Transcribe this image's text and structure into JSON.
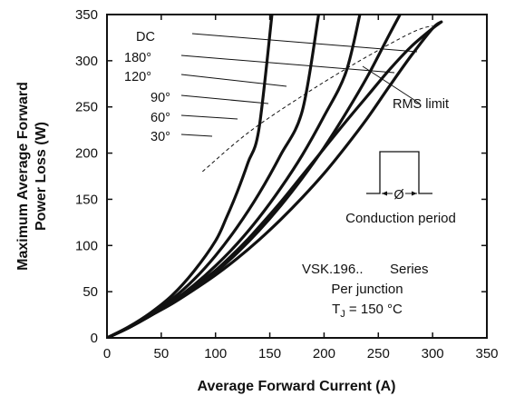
{
  "chart_data": {
    "type": "line",
    "xlabel": "Average Forward Current (A)",
    "ylabel_lines": [
      "Maximum Average Forward",
      "Power Loss (W)"
    ],
    "xlim": [
      0,
      350
    ],
    "ylim": [
      0,
      350
    ],
    "xticks": [
      0,
      50,
      100,
      150,
      200,
      250,
      300,
      350
    ],
    "yticks": [
      0,
      50,
      100,
      150,
      200,
      250,
      300,
      350
    ],
    "grid": false,
    "series": [
      {
        "name": "DC",
        "label": "DC",
        "x": [
          0,
          20,
          40,
          60,
          80,
          100,
          120,
          130,
          140,
          160,
          180,
          200,
          220,
          240,
          260,
          280,
          300,
          308
        ],
        "y": [
          0,
          11,
          24,
          38,
          55,
          73,
          95,
          107,
          120,
          147,
          176,
          205,
          234,
          262,
          290,
          315,
          335,
          342
        ]
      },
      {
        "name": "180°",
        "label": "180°",
        "x": [
          0,
          20,
          40,
          60,
          80,
          100,
          120,
          140,
          160,
          180,
          200,
          220,
          240,
          260,
          280,
          300,
          308
        ],
        "y": [
          0,
          11,
          24,
          37,
          52,
          68,
          86,
          106,
          128,
          152,
          178,
          207,
          238,
          272,
          305,
          335,
          342
        ]
      },
      {
        "name": "120°",
        "label": "120°",
        "x": [
          0,
          20,
          40,
          60,
          80,
          100,
          120,
          140,
          160,
          180,
          200,
          220,
          240,
          260,
          270
        ],
        "y": [
          0,
          11,
          24,
          38,
          53,
          71,
          92,
          116,
          143,
          173,
          206,
          243,
          283,
          328,
          350
        ]
      },
      {
        "name": "90°",
        "label": "90°",
        "x": [
          0,
          20,
          40,
          60,
          80,
          100,
          120,
          140,
          160,
          180,
          200,
          220,
          233
        ],
        "y": [
          0,
          11,
          24,
          39,
          57,
          78,
          102,
          130,
          162,
          198,
          240,
          287,
          350
        ]
      },
      {
        "name": "60°",
        "label": "60°",
        "x": [
          0,
          20,
          40,
          60,
          80,
          100,
          120,
          140,
          160,
          180,
          195
        ],
        "y": [
          0,
          11,
          25,
          42,
          63,
          89,
          120,
          156,
          198,
          246,
          350
        ]
      },
      {
        "name": "30°",
        "label": "30°",
        "x": [
          0,
          20,
          40,
          60,
          80,
          100,
          110,
          120,
          130,
          140,
          152
        ],
        "y": [
          0,
          12,
          27,
          46,
          72,
          105,
          130,
          158,
          190,
          226,
          350
        ]
      }
    ],
    "rms_limit": {
      "label": "RMS limit",
      "x": [
        88,
        130,
        180,
        230,
        280,
        300
      ],
      "y": [
        180,
        222,
        262,
        298,
        330,
        338
      ]
    },
    "inset": {
      "label": "Conduction period",
      "symbol": "Ø"
    },
    "notes": [
      "VSK.196..",
      "Series",
      "Per junction"
    ],
    "tj_note": {
      "prefix": "T",
      "subscript": "J",
      "suffix": " = 150 °C"
    }
  }
}
